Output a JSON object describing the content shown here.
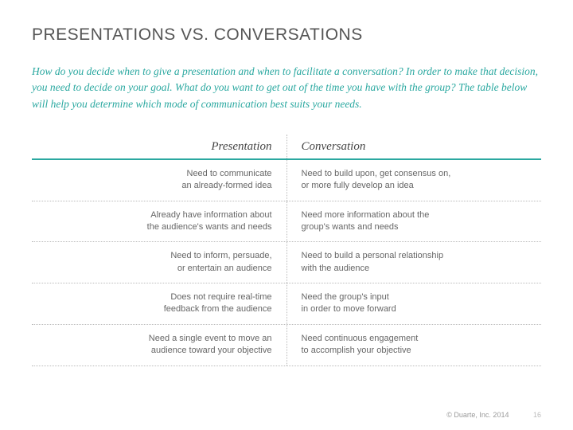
{
  "title": "PRESENTATIONS VS. CONVERSATIONS",
  "intro": "How do you decide when to give a presentation and when to facilitate a conversation? In order to make that decision, you need to decide on your goal. What do you want to get out of the time you have with the group? The table below will help you determine which mode of communication best suits your needs.",
  "headers": {
    "left": "Presentation",
    "right": "Conversation"
  },
  "rows": [
    {
      "left": "Need to communicate\nan already-formed idea",
      "right": "Need to build upon, get consensus on,\nor more fully develop an idea"
    },
    {
      "left": "Already have information about\nthe audience's wants and needs",
      "right": "Need more information about the\ngroup's wants and needs"
    },
    {
      "left": "Need to inform, persuade,\nor entertain an audience",
      "right": "Need to build a personal relationship\nwith the audience"
    },
    {
      "left": "Does not require real-time\nfeedback from the audience",
      "right": "Need the group's input\nin order to move forward"
    },
    {
      "left": "Need a single event to move an\naudience toward your objective",
      "right": "Need continuous engagement\nto accomplish your objective"
    }
  ],
  "footer": {
    "copyright": "© Duarte, Inc. 2014",
    "page": "16"
  },
  "colors": {
    "accent": "#2aa8a0",
    "text": "#666666",
    "title": "#555555",
    "border": "#bbbbbb"
  }
}
